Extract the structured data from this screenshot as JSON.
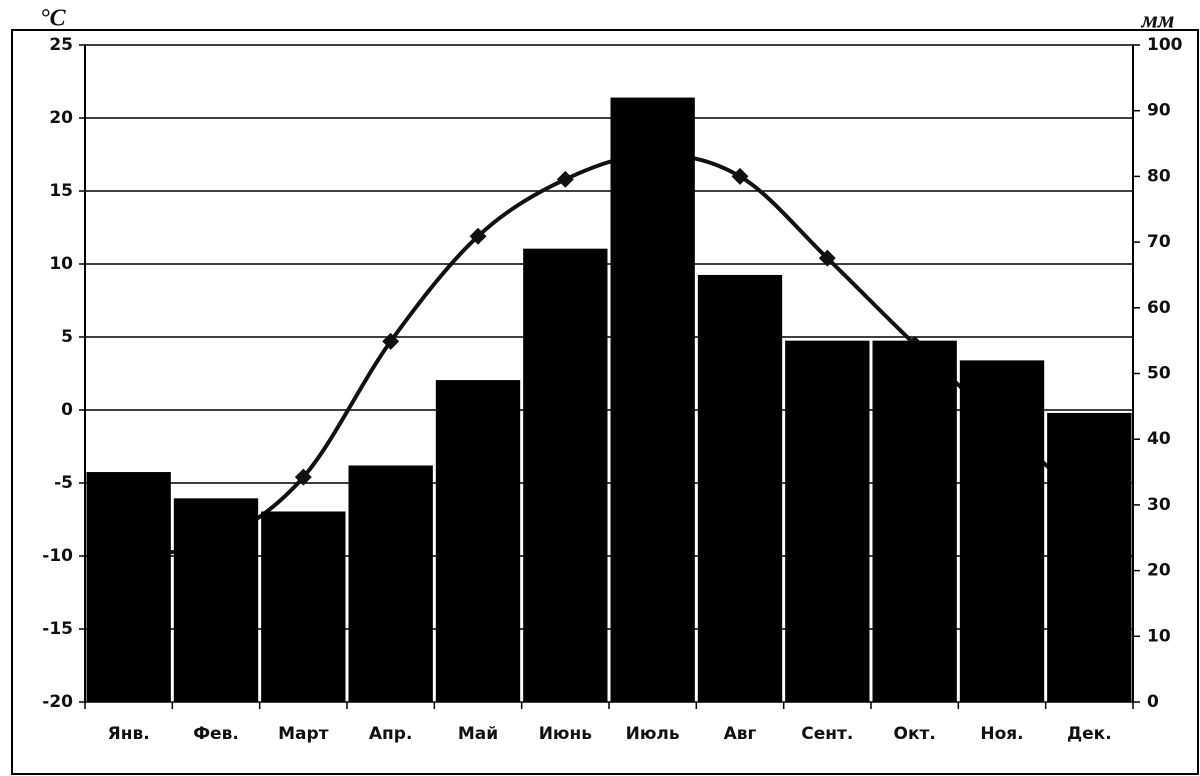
{
  "chart_data": {
    "type": "bar",
    "y_label": "°C",
    "y2_label": "мм",
    "categories": [
      "Янв.",
      "Фев.",
      "Март",
      "Апр.",
      "Май",
      "Июнь",
      "Июль",
      "Авг",
      "Сент.",
      "Окт.",
      "Ноя.",
      "Дек."
    ],
    "series": [
      {
        "type": "bar",
        "axis": "y2",
        "color": "#000000",
        "values": [
          35,
          31,
          29,
          36,
          49,
          69,
          92,
          65,
          55,
          55,
          52,
          44
        ]
      },
      {
        "type": "line",
        "color": "#111111",
        "values": [
          -10,
          -9,
          -4.6,
          4.7,
          11.9,
          15.8,
          17.5,
          16,
          10.4,
          4.5,
          -1,
          -6.5
        ]
      }
    ],
    "ylim": [
      -20,
      25
    ],
    "yticks": [
      -20,
      -15,
      -10,
      -5,
      0,
      5,
      10,
      15,
      20,
      25
    ],
    "y2lim": [
      0,
      100
    ],
    "y2ticks": [
      0,
      10,
      20,
      30,
      40,
      50,
      60,
      70,
      80,
      90,
      100
    ],
    "grid": true
  }
}
